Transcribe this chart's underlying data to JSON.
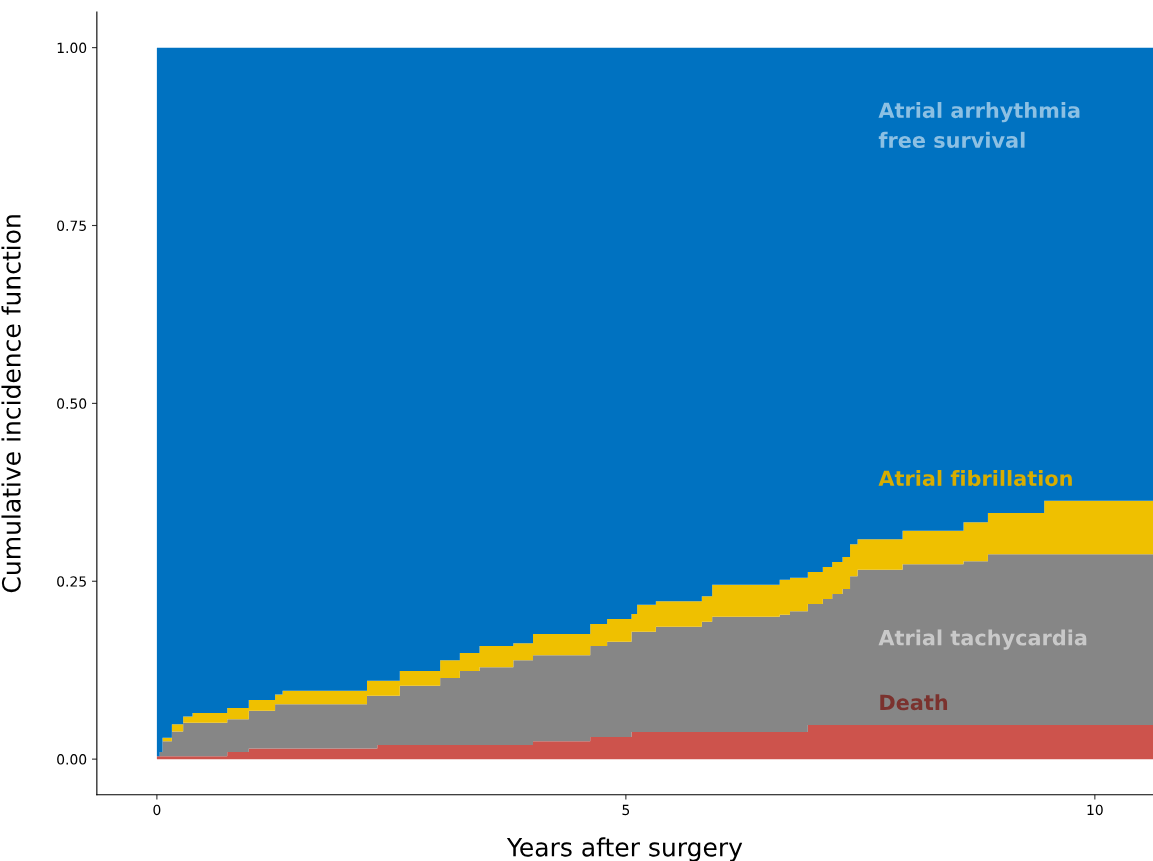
{
  "chart_data": {
    "type": "area",
    "stacked": true,
    "xlabel": "Years after surgery",
    "ylabel": "Cumulative incidence function",
    "xlim": [
      -0.64,
      10.62
    ],
    "ylim": [
      -0.05,
      1.05
    ],
    "xticks": [
      0,
      5,
      10
    ],
    "yticks": [
      {
        "value": 0,
        "label": "0.00"
      },
      {
        "value": 0.25,
        "label": "0.25"
      },
      {
        "value": 0.5,
        "label": "0.50"
      },
      {
        "value": 0.75,
        "label": "0.75"
      },
      {
        "value": 1,
        "label": "1.00"
      }
    ],
    "grid": false,
    "legend": false,
    "x": [
      0,
      0.03,
      0.06,
      0.16,
      0.28,
      0.38,
      0.75,
      0.98,
      1.26,
      1.34,
      2.24,
      2.35,
      2.59,
      3.02,
      3.23,
      3.44,
      3.8,
      4.01,
      4.62,
      4.8,
      5.06,
      5.12,
      5.32,
      5.81,
      5.92,
      6.64,
      6.75,
      6.94,
      7.1,
      7.2,
      7.31,
      7.39,
      7.47,
      7.95,
      8.6,
      8.86,
      9.46,
      10.62
    ],
    "series": [
      {
        "name": "Death",
        "color": "#cd534c",
        "values": [
          0.004,
          0.004,
          0.004,
          0.004,
          0.004,
          0.004,
          0.01,
          0.015,
          0.015,
          0.015,
          0.015,
          0.02,
          0.02,
          0.02,
          0.02,
          0.02,
          0.02,
          0.025,
          0.031,
          0.031,
          0.038,
          0.038,
          0.038,
          0.038,
          0.038,
          0.038,
          0.038,
          0.048,
          0.048,
          0.048,
          0.048,
          0.048,
          0.048,
          0.048,
          0.048,
          0.048,
          0.048,
          0.048
        ]
      },
      {
        "name": "Atrial tachycardia",
        "color": "#868686",
        "values": [
          0,
          0.006,
          0.021,
          0.035,
          0.047,
          0.047,
          0.046,
          0.053,
          0.062,
          0.062,
          0.074,
          0.069,
          0.083,
          0.094,
          0.104,
          0.109,
          0.119,
          0.121,
          0.128,
          0.134,
          0.141,
          0.141,
          0.148,
          0.155,
          0.162,
          0.165,
          0.17,
          0.17,
          0.177,
          0.184,
          0.191,
          0.209,
          0.218,
          0.226,
          0.23,
          0.24,
          0.24,
          0.24
        ]
      },
      {
        "name": "Atrial fibrillation",
        "color": "#efc000",
        "values": [
          0,
          0,
          0.005,
          0.01,
          0.009,
          0.014,
          0.016,
          0.015,
          0.014,
          0.019,
          0.021,
          0.021,
          0.021,
          0.025,
          0.025,
          0.03,
          0.024,
          0.03,
          0.031,
          0.032,
          0.025,
          0.038,
          0.036,
          0.036,
          0.045,
          0.049,
          0.047,
          0.045,
          0.045,
          0.045,
          0.045,
          0.045,
          0.043,
          0.047,
          0.055,
          0.058,
          0.075,
          0.075
        ]
      },
      {
        "name": "Atrial arrhythmia\nfree survival",
        "color": "#0072c1",
        "values": [
          0.996,
          0.99,
          0.97,
          0.951,
          0.94,
          0.935,
          0.928,
          0.917,
          0.909,
          0.904,
          0.89,
          0.89,
          0.876,
          0.861,
          0.851,
          0.841,
          0.837,
          0.824,
          0.81,
          0.803,
          0.796,
          0.783,
          0.778,
          0.771,
          0.755,
          0.748,
          0.745,
          0.737,
          0.73,
          0.723,
          0.716,
          0.698,
          0.691,
          0.679,
          0.667,
          0.654,
          0.637,
          0.637
        ]
      }
    ]
  }
}
